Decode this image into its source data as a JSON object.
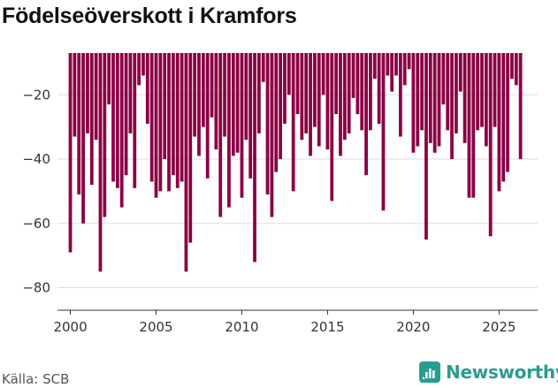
{
  "chart_data": {
    "type": "bar",
    "title": "Födelseöverskott i Kramfors",
    "xlabel": "",
    "ylabel": "",
    "source": "Källa: SCB",
    "brand": "Newsworthy",
    "bar_color": "#8b0044",
    "brand_color": "#2a9d8f",
    "ylim": [
      -87,
      -7
    ],
    "xlim": [
      1999.25,
      2027.25
    ],
    "yticks": [
      -20,
      -40,
      -60,
      -80
    ],
    "ytick_labels": [
      "−20",
      "−40",
      "−60",
      "−80"
    ],
    "xticks": [
      2000,
      2005,
      2010,
      2015,
      2020,
      2025
    ],
    "xtick_labels": [
      "2000",
      "2005",
      "2010",
      "2015",
      "2020",
      "2025"
    ],
    "start_year": 2000,
    "periods_per_year": 4,
    "values": [
      -69,
      -33,
      -51,
      -60,
      -32,
      -48,
      -34,
      -75,
      -58,
      -23,
      -47,
      -49,
      -55,
      -45,
      -32,
      -49,
      -17,
      -14,
      -29,
      -47,
      -52,
      -50,
      -40,
      -50,
      -45,
      -49,
      -47,
      -75,
      -66,
      -33,
      -39,
      -30,
      -46,
      -27,
      -37,
      -58,
      -33,
      -55,
      -39,
      -38,
      -52,
      -34,
      -46,
      -72,
      -32,
      -16,
      -51,
      -58,
      -44,
      -40,
      -29,
      -20,
      -50,
      -26,
      -34,
      -32,
      -39,
      -30,
      -36,
      -20,
      -37,
      -53,
      -26,
      -39,
      -34,
      -32,
      -21,
      -26,
      -31,
      -45,
      -31,
      -15,
      -29,
      -56,
      -14,
      -19,
      -14,
      -33,
      -17,
      -12,
      -38,
      -36,
      -31,
      -65,
      -35,
      -38,
      -36,
      -23,
      -31,
      -40,
      -32,
      -19,
      -35,
      -52,
      -52,
      -31,
      -30,
      -36,
      -64,
      -30,
      -50,
      -47,
      -44,
      -15,
      -17,
      -40
    ]
  }
}
